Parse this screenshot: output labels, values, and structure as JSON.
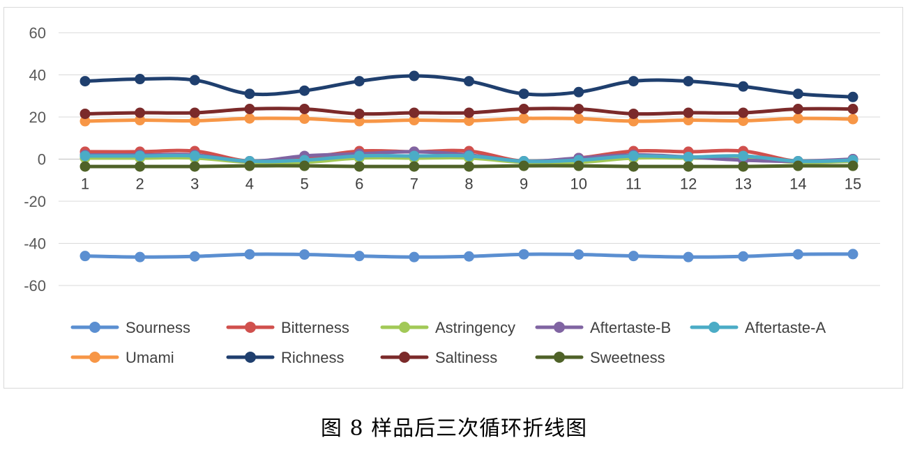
{
  "caption": "图 8  样品后三次循环折线图",
  "chart_data": {
    "type": "line",
    "title": "",
    "xlabel": "",
    "ylabel": "",
    "ylim": [
      -60,
      60
    ],
    "yticks": [
      60,
      40,
      20,
      0,
      -20,
      -40,
      -60
    ],
    "x": [
      1,
      2,
      3,
      4,
      5,
      6,
      7,
      8,
      9,
      10,
      11,
      12,
      13,
      14,
      15
    ],
    "grid": true,
    "legend_position": "bottom",
    "series": [
      {
        "name": "Sourness",
        "color": "#5b8fd1",
        "values": [
          -46,
          -46.5,
          -46.2,
          -45.2,
          -45.3,
          -46,
          -46.5,
          -46.2,
          -45.2,
          -45.3,
          -46,
          -46.5,
          -46.2,
          -45.2,
          -45.1
        ]
      },
      {
        "name": "Bitterness",
        "color": "#d0504d",
        "values": [
          3.5,
          3.5,
          3.8,
          -1,
          0.5,
          3.8,
          3.5,
          3.8,
          -1,
          0.5,
          3.8,
          3.5,
          3.8,
          -1,
          0
        ]
      },
      {
        "name": "Astringency",
        "color": "#a2c957",
        "values": [
          0.5,
          0.5,
          0.5,
          -1.5,
          -1.5,
          0.5,
          0.5,
          0.5,
          -1.5,
          -1.5,
          0.5,
          0.5,
          0.5,
          -1.5,
          -1
        ]
      },
      {
        "name": "Aftertaste-B",
        "color": "#8064a2",
        "values": [
          2,
          2,
          2,
          -1,
          1.5,
          2.5,
          3.5,
          2,
          -1,
          0.5,
          2,
          1,
          -0.5,
          -1,
          0
        ]
      },
      {
        "name": "Aftertaste-A",
        "color": "#4bacc6",
        "values": [
          1.5,
          1.5,
          1.5,
          -1,
          -0.5,
          1.5,
          1.5,
          1.5,
          -1,
          -0.5,
          1.5,
          1,
          1.5,
          -1,
          -0.5
        ]
      },
      {
        "name": "Umami",
        "color": "#f79646",
        "values": [
          18,
          18.5,
          18.2,
          19.3,
          19.2,
          18,
          18.5,
          18.2,
          19.3,
          19.2,
          18,
          18.5,
          18.2,
          19.3,
          19
        ]
      },
      {
        "name": "Richness",
        "color": "#1f3f6e",
        "values": [
          37,
          38,
          37.5,
          31,
          32.5,
          37,
          39.5,
          37,
          31,
          31.8,
          37,
          37,
          34.5,
          31,
          29.5
        ]
      },
      {
        "name": "Saltiness",
        "color": "#7b2a2a",
        "values": [
          21.5,
          22,
          22,
          23.8,
          23.8,
          21.5,
          22,
          22,
          23.8,
          23.8,
          21.5,
          22,
          22,
          23.8,
          23.8
        ]
      },
      {
        "name": "Sweetness",
        "color": "#4f6228",
        "values": [
          -3.5,
          -3.5,
          -3.5,
          -3.2,
          -3.2,
          -3.5,
          -3.5,
          -3.5,
          -3.2,
          -3.2,
          -3.5,
          -3.5,
          -3.5,
          -3.2,
          -3.2
        ]
      }
    ]
  }
}
